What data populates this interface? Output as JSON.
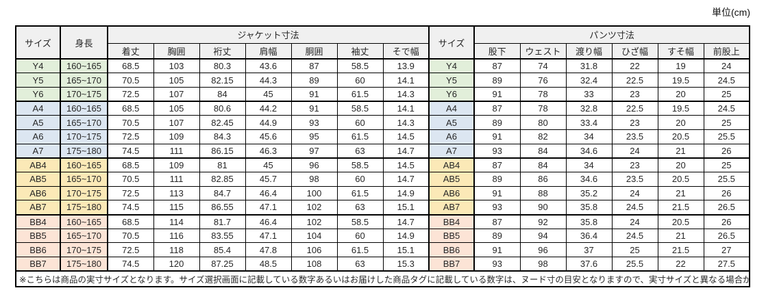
{
  "unit_label": "単位(cm)",
  "colors": {
    "header_bg": "#F0F0F0",
    "border": "#000000",
    "text": "#262626",
    "group_y": "#E2EFDA",
    "group_a": "#DCE6F1",
    "group_ab": "#FBE9B7",
    "group_bb": "#FCE4D6"
  },
  "table": {
    "headers": {
      "size": "サイズ",
      "height": "身長",
      "jacket_group": "ジャケット寸法",
      "jacket_cols": [
        "着丈",
        "胸囲",
        "裄丈",
        "肩幅",
        "胴囲",
        "袖丈",
        "そで幅"
      ],
      "size2": "サイズ",
      "pants_group": "パンツ寸法",
      "pants_cols": [
        "股下",
        "ウェスト",
        "渡り幅",
        "ひざ幅",
        "すそ幅",
        "前股上"
      ]
    },
    "groups": [
      {
        "name": "Y",
        "color": "#E2EFDA",
        "rows": [
          {
            "size": "Y4",
            "height": "160~165",
            "jacket": [
              "68.5",
              "103",
              "80.3",
              "43.6",
              "87",
              "58.5",
              "13.9"
            ],
            "pants": [
              "87",
              "74",
              "31.8",
              "22",
              "19",
              "24"
            ]
          },
          {
            "size": "Y5",
            "height": "165~170",
            "jacket": [
              "70.5",
              "105",
              "82.15",
              "44.3",
              "89",
              "60",
              "14.1"
            ],
            "pants": [
              "89",
              "76",
              "32.4",
              "22.5",
              "19.5",
              "24.5"
            ]
          },
          {
            "size": "Y6",
            "height": "170~175",
            "jacket": [
              "72.5",
              "107",
              "84",
              "45",
              "91",
              "61.5",
              "14.3"
            ],
            "pants": [
              "91",
              "78",
              "33",
              "23",
              "20",
              "25"
            ]
          }
        ]
      },
      {
        "name": "A",
        "color": "#DCE6F1",
        "rows": [
          {
            "size": "A4",
            "height": "160~165",
            "jacket": [
              "68.5",
              "105",
              "80.6",
              "44.2",
              "91",
              "58.5",
              "14.1"
            ],
            "pants": [
              "87",
              "78",
              "32.8",
              "22.5",
              "19.5",
              "24.5"
            ]
          },
          {
            "size": "A5",
            "height": "165~170",
            "jacket": [
              "70.5",
              "107",
              "82.45",
              "44.9",
              "93",
              "60",
              "14.3"
            ],
            "pants": [
              "89",
              "80",
              "33.4",
              "23",
              "20",
              "25"
            ]
          },
          {
            "size": "A6",
            "height": "170~175",
            "jacket": [
              "72.5",
              "109",
              "84.3",
              "45.6",
              "95",
              "61.5",
              "14.5"
            ],
            "pants": [
              "91",
              "82",
              "34",
              "23.5",
              "20.5",
              "25.5"
            ]
          },
          {
            "size": "A7",
            "height": "175~180",
            "jacket": [
              "74.5",
              "111",
              "86.15",
              "46.3",
              "97",
              "63",
              "14.7"
            ],
            "pants": [
              "93",
              "84",
              "34.6",
              "24",
              "21",
              "26"
            ]
          }
        ]
      },
      {
        "name": "AB",
        "color": "#FBE9B7",
        "rows": [
          {
            "size": "AB4",
            "height": "160~165",
            "jacket": [
              "68.5",
              "109",
              "81",
              "45",
              "96",
              "58.5",
              "14.5"
            ],
            "pants": [
              "87",
              "84",
              "34",
              "23",
              "20",
              "25"
            ]
          },
          {
            "size": "AB5",
            "height": "165~170",
            "jacket": [
              "70.5",
              "111",
              "82.85",
              "45.7",
              "98",
              "60",
              "14.7"
            ],
            "pants": [
              "89",
              "86",
              "34.6",
              "23.5",
              "20.5",
              "25.5"
            ]
          },
          {
            "size": "AB6",
            "height": "170~175",
            "jacket": [
              "72.5",
              "113",
              "84.7",
              "46.4",
              "100",
              "61.5",
              "14.9"
            ],
            "pants": [
              "91",
              "88",
              "35.2",
              "24",
              "21",
              "26"
            ]
          },
          {
            "size": "AB7",
            "height": "175~180",
            "jacket": [
              "74.5",
              "115",
              "86.55",
              "47.1",
              "102",
              "63",
              "15.1"
            ],
            "pants": [
              "93",
              "90",
              "35.8",
              "24.5",
              "21.5",
              "26.5"
            ]
          }
        ]
      },
      {
        "name": "BB",
        "color": "#FCE4D6",
        "rows": [
          {
            "size": "BB4",
            "height": "160~165",
            "jacket": [
              "68.5",
              "114",
              "81.7",
              "46.4",
              "102",
              "58.5",
              "14.7"
            ],
            "pants": [
              "87",
              "92",
              "35.8",
              "24",
              "20.5",
              "26"
            ]
          },
          {
            "size": "BB5",
            "height": "165~170",
            "jacket": [
              "70.5",
              "116",
              "83.55",
              "47.1",
              "104",
              "60",
              "14.9"
            ],
            "pants": [
              "89",
              "94",
              "36.4",
              "24.5",
              "21",
              "26.5"
            ]
          },
          {
            "size": "BB6",
            "height": "170~175",
            "jacket": [
              "72.5",
              "118",
              "85.4",
              "47.8",
              "106",
              "61.5",
              "15.1"
            ],
            "pants": [
              "91",
              "96",
              "37",
              "25",
              "21.5",
              "27"
            ]
          },
          {
            "size": "BB7",
            "height": "175~180",
            "jacket": [
              "74.5",
              "120",
              "87.25",
              "48.5",
              "108",
              "63",
              "15.3"
            ],
            "pants": [
              "93",
              "98",
              "37.6",
              "25.5",
              "22",
              "27.5"
            ]
          }
        ]
      }
    ],
    "footnote": "※こちらは商品の実寸サイズとなります。サイズ選択画面に記載している数字あるいはお届けした商品タグに記載している数字は、ヌード寸の目安となりますので、実寸サイズと異なる場合がございます。"
  }
}
